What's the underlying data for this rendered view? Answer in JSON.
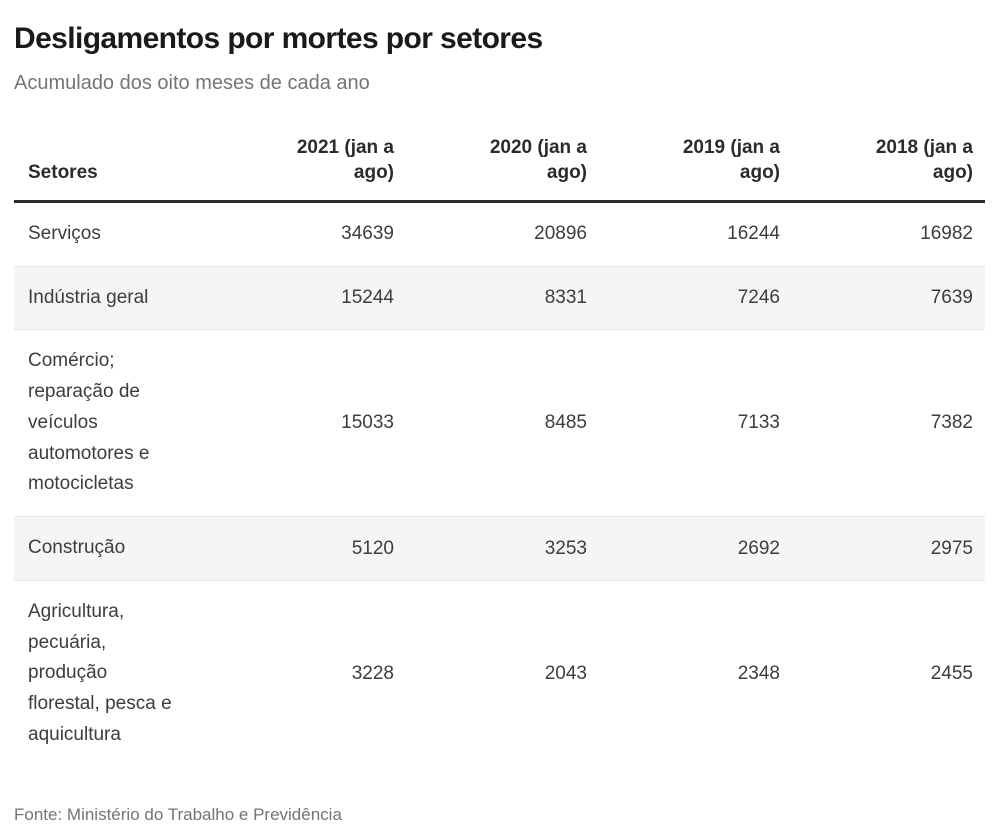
{
  "page": {
    "title": "Desligamentos por mortes por setores",
    "subtitle": "Acumulado dos oito meses de cada ano",
    "source": "Fonte: Ministério do Trabalho e Previdência"
  },
  "colors": {
    "title_color": "#1a1a1a",
    "muted_color": "#757575",
    "cell_color": "#3d3d3d",
    "header_color": "#2b2b2b",
    "stripe_color": "#f5f5f5",
    "rule_color": "#2b2b2b",
    "divider_color": "#e8e8e8"
  },
  "chart_data": {
    "type": "table",
    "title": "Desligamentos por mortes por setores",
    "subtitle": "Acumulado dos oito meses de cada ano",
    "source": "Fonte: Ministério do Trabalho e Previdência",
    "columns": [
      "Setores",
      "2021 (jan a ago)",
      "2020 (jan a ago)",
      "2019 (jan a ago)",
      "2018 (jan a ago)"
    ],
    "rows": [
      {
        "setor": "Serviços",
        "values": [
          34639,
          20896,
          16244,
          16982
        ]
      },
      {
        "setor": "Indústria geral",
        "values": [
          15244,
          8331,
          7246,
          7639
        ]
      },
      {
        "setor": "Comércio; reparação de veículos automotores e motocicletas",
        "values": [
          15033,
          8485,
          7133,
          7382
        ]
      },
      {
        "setor": "Construção",
        "values": [
          5120,
          3253,
          2692,
          2975
        ]
      },
      {
        "setor": "Agricultura, pecuária, produção florestal, pesca e aquicultura",
        "values": [
          3228,
          2043,
          2348,
          2455
        ]
      }
    ],
    "layout": {
      "striped": true,
      "numeric_alignment": "right",
      "header_rule": true
    }
  }
}
